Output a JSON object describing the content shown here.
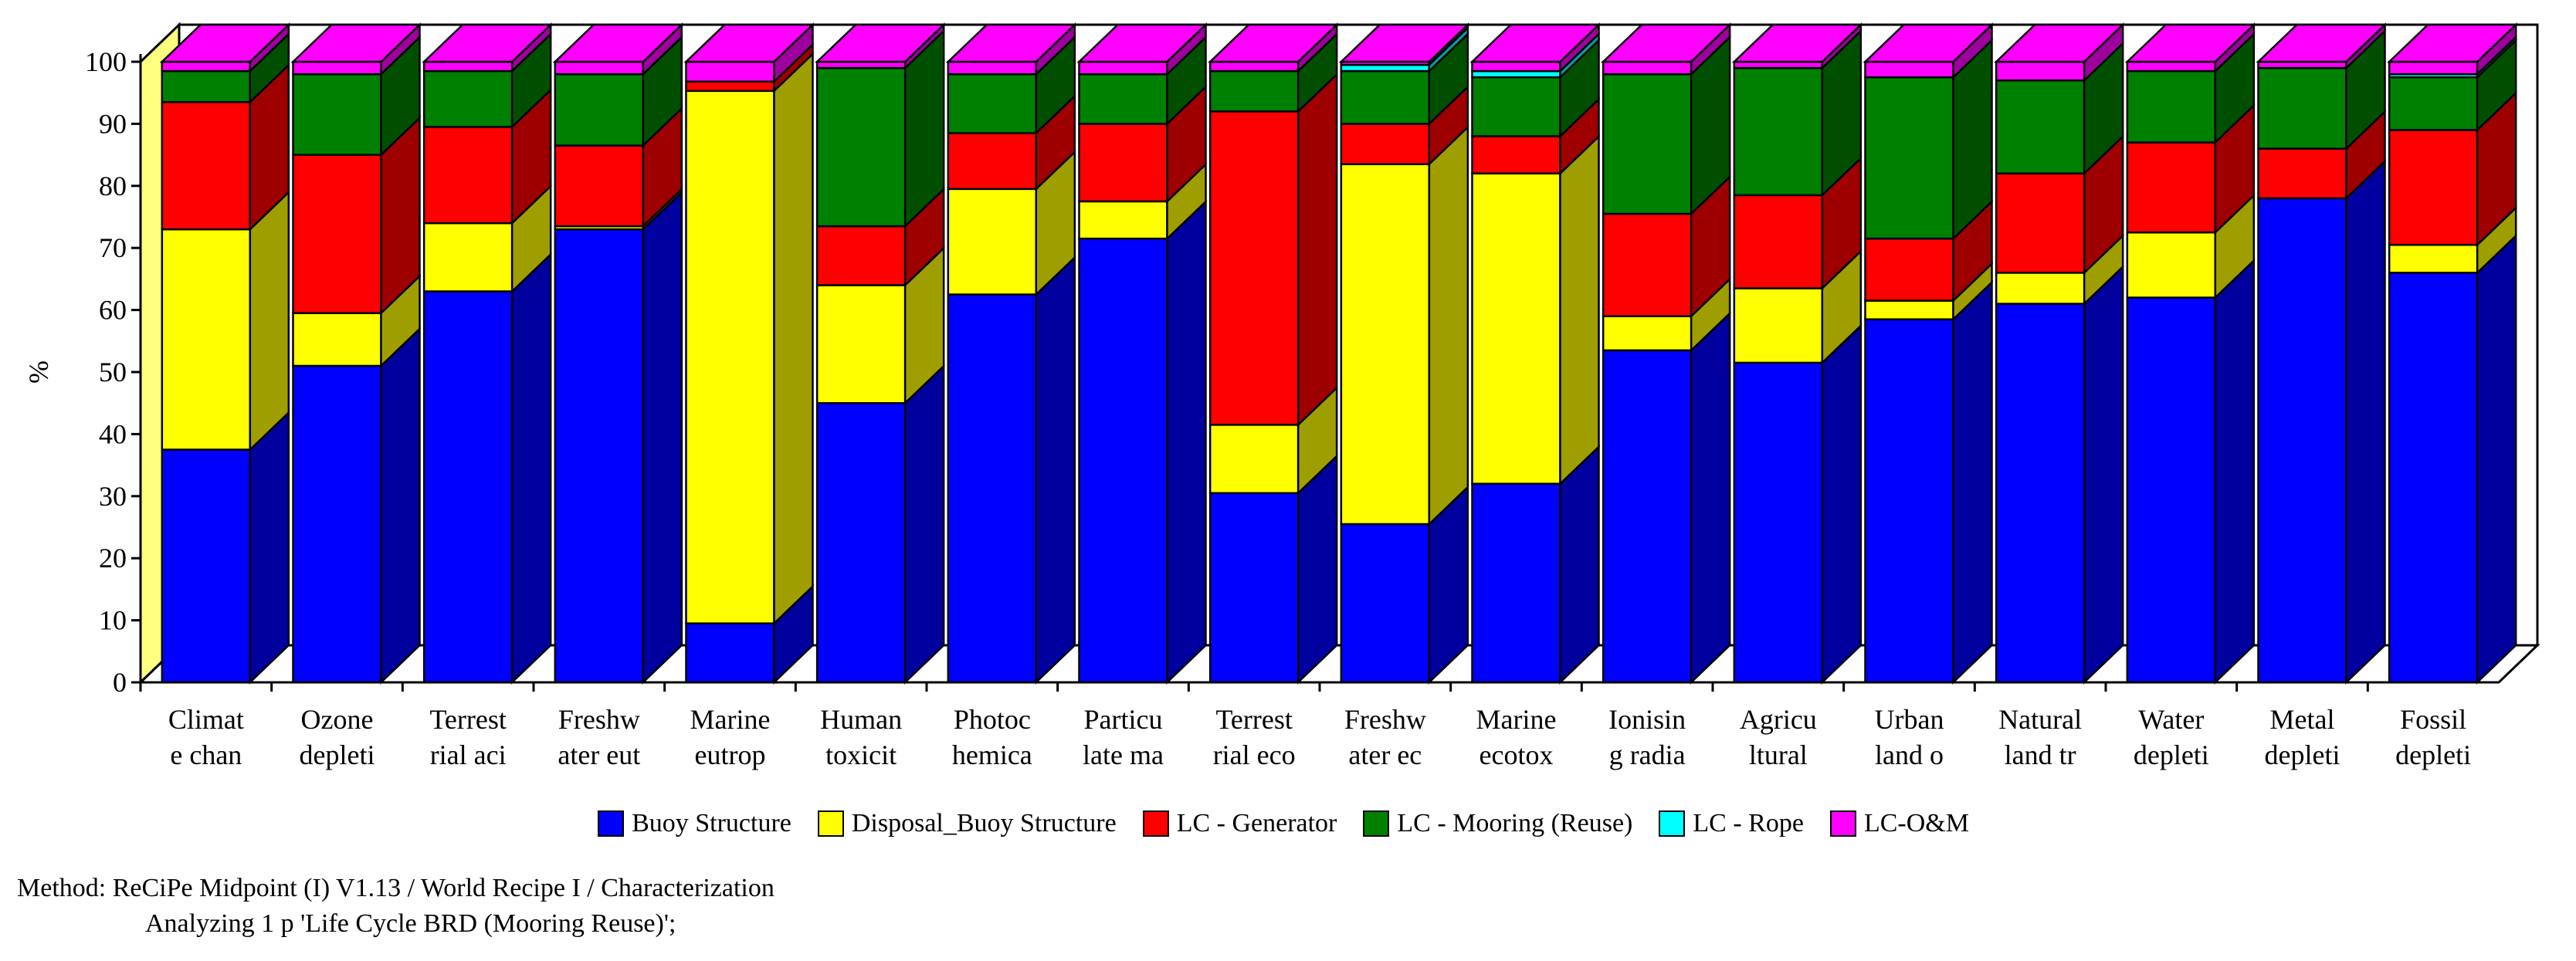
{
  "chart_data": {
    "type": "bar",
    "stacked": true,
    "three_d": true,
    "ylabel": "%",
    "ylim": [
      0,
      100
    ],
    "yticks": [
      "0",
      "10",
      "20",
      "30",
      "40",
      "50",
      "60",
      "70",
      "80",
      "90",
      "100"
    ],
    "categories": [
      [
        "Climat",
        "e chan"
      ],
      [
        "Ozone",
        "depleti"
      ],
      [
        "Terrest",
        "rial aci"
      ],
      [
        "Freshw",
        "ater eut"
      ],
      [
        "Marine",
        "eutrop"
      ],
      [
        "Human",
        "toxicit"
      ],
      [
        "Photoc",
        "hemica"
      ],
      [
        "Particu",
        "late ma"
      ],
      [
        "Terrest",
        "rial eco"
      ],
      [
        "Freshw",
        "ater ec"
      ],
      [
        "Marine",
        "ecotox"
      ],
      [
        "Ionisin",
        "g radia"
      ],
      [
        "Agricu",
        "ltural"
      ],
      [
        "Urban",
        "land o"
      ],
      [
        "Natural",
        "land tr"
      ],
      [
        "Water",
        "depleti"
      ],
      [
        "Metal",
        "depleti"
      ],
      [
        "Fossil",
        "depleti"
      ]
    ],
    "series": [
      {
        "name": "Buoy Structure",
        "color": "#0000ff",
        "values": [
          37.5,
          51,
          63,
          73,
          9.5,
          45,
          62.5,
          71.5,
          30.5,
          25.5,
          32,
          53.5,
          51.5,
          58.5,
          61,
          62,
          78,
          66
        ]
      },
      {
        "name": "Disposal_Buoy Structure",
        "color": "#ffff00",
        "values": [
          35.5,
          8.5,
          11,
          0.5,
          85.8,
          19,
          17,
          6,
          11,
          58,
          50,
          5.5,
          12,
          3,
          5,
          10.5,
          0,
          4.5
        ]
      },
      {
        "name": "LC - Generator",
        "color": "#ff0000",
        "values": [
          20.5,
          25.5,
          15.5,
          13,
          1.5,
          9.5,
          9,
          12.5,
          50.5,
          6.5,
          6,
          16.5,
          15,
          10,
          16,
          14.5,
          8,
          18.5
        ]
      },
      {
        "name": "LC - Mooring (Reuse)",
        "color": "#008000",
        "values": [
          5,
          13,
          9,
          11.5,
          0,
          25.5,
          9.5,
          8,
          6.5,
          8.5,
          9.5,
          22.5,
          20.5,
          26,
          15,
          11.5,
          13,
          8.5
        ]
      },
      {
        "name": "LC - Rope",
        "color": "#00ffff",
        "values": [
          0,
          0,
          0,
          0,
          0,
          0,
          0,
          0,
          0,
          1,
          1,
          0,
          0,
          0,
          0,
          0,
          0,
          0.5
        ]
      },
      {
        "name": "LC-O&M",
        "color": "#ff00ff",
        "values": [
          1.5,
          2,
          1.5,
          2,
          3.2,
          1,
          2,
          2,
          1.5,
          0.5,
          1.5,
          2,
          1,
          2.5,
          3,
          1.5,
          1,
          2
        ]
      }
    ]
  },
  "footer": {
    "method_line": "Method: ReCiPe Midpoint (I) V1.13 / World Recipe I / Characterization",
    "analyzing_line": "Analyzing 1 p 'Life Cycle BRD (Mooring Reuse)';"
  }
}
